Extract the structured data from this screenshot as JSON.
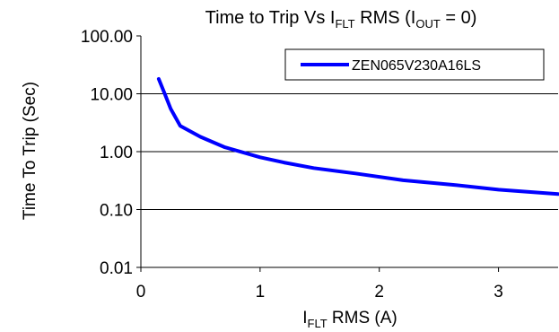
{
  "chart_data": {
    "type": "line",
    "title": {
      "prefix": "Time to Trip Vs I",
      "sub1": "FLT",
      "middle": " RMS (I",
      "sub2": "OUT",
      "suffix": " = 0)"
    },
    "xlabel": {
      "prefix": "I",
      "sub": "FLT",
      "suffix": " RMS (A)"
    },
    "ylabel": "Time To Trip (Sec)",
    "xlim": [
      0,
      3.5
    ],
    "ylim": [
      0.01,
      100
    ],
    "yscale": "log",
    "x_ticks": [
      "0",
      "1",
      "2",
      "3"
    ],
    "y_ticks": [
      "100.00",
      "10.00",
      "1.00",
      "0.10",
      "0.01"
    ],
    "grid": "horizontal",
    "legend_position": "top-right",
    "series": [
      {
        "name": "ZEN065V230A16LS",
        "color": "#0000ff",
        "x": [
          0.15,
          0.2,
          0.25,
          0.33,
          0.5,
          0.7,
          1.0,
          1.2,
          1.45,
          1.8,
          2.2,
          2.6,
          3.0,
          3.5
        ],
        "y": [
          18,
          10,
          5.5,
          2.8,
          1.8,
          1.2,
          0.8,
          0.65,
          0.52,
          0.42,
          0.32,
          0.27,
          0.22,
          0.185
        ]
      }
    ]
  }
}
